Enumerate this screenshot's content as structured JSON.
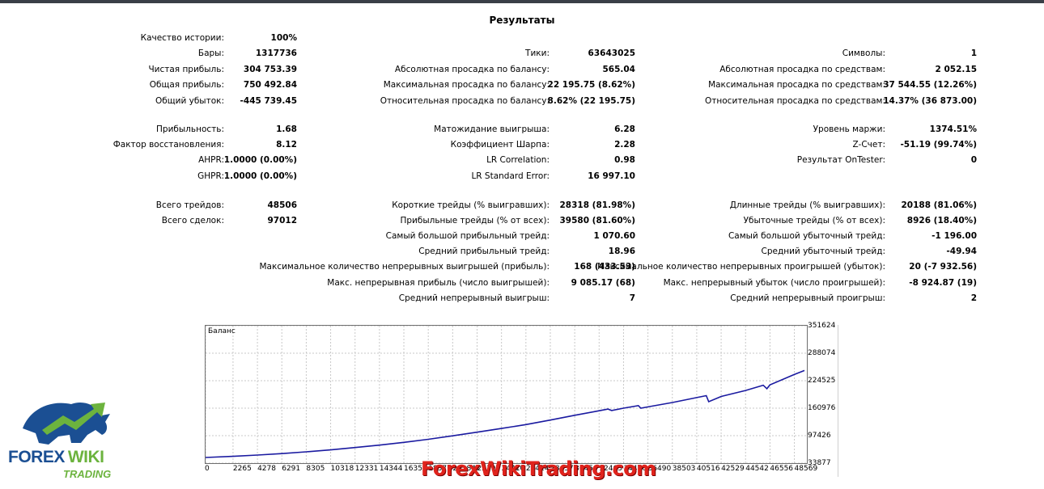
{
  "title": "Результаты",
  "stats": [
    {
      "label": "Качество истории:",
      "value": "100%"
    },
    {
      "label": "Бары:",
      "value": "1317736"
    },
    {
      "label": "Тики:",
      "value": "63643025"
    },
    {
      "label": "Символы:",
      "value": "1"
    },
    {
      "label": "Чистая прибыль:",
      "value": "304 753.39"
    },
    {
      "label": "Абсолютная просадка по балансу:",
      "value": "565.04"
    },
    {
      "label": "Абсолютная просадка по средствам:",
      "value": "2 052.15"
    },
    {
      "label": "Общая прибыль:",
      "value": "750 492.84"
    },
    {
      "label": "Максимальная просадка по балансу:",
      "value": "22 195.75 (8.62%)"
    },
    {
      "label": "Максимальная просадка по средствам:",
      "value": "37 544.55 (12.26%)"
    },
    {
      "label": "Общий убыток:",
      "value": "-445 739.45"
    },
    {
      "label": "Относительная просадка по балансу:",
      "value": "8.62% (22 195.75)"
    },
    {
      "label": "Относительная просадка по средствам:",
      "value": "14.37% (36 873.00)"
    },
    {
      "label": "Прибыльность:",
      "value": "1.68"
    },
    {
      "label": "Матожидание выигрыша:",
      "value": "6.28"
    },
    {
      "label": "Уровень маржи:",
      "value": "1374.51%"
    },
    {
      "label": "Фактор восстановления:",
      "value": "8.12"
    },
    {
      "label": "Коэффициент Шарпа:",
      "value": "2.28"
    },
    {
      "label": "Z-Счет:",
      "value": "-51.19 (99.74%)"
    },
    {
      "label": "AHPR:",
      "value": "1.0000 (0.00%)"
    },
    {
      "label": "LR Correlation:",
      "value": "0.98"
    },
    {
      "label": "Результат OnTester:",
      "value": "0"
    },
    {
      "label": "GHPR:",
      "value": "1.0000 (0.00%)"
    },
    {
      "label": "LR Standard Error:",
      "value": "16 997.10"
    },
    {
      "label": "Всего трейдов:",
      "value": "48506"
    },
    {
      "label": "Короткие трейды (% выигравших):",
      "value": "28318 (81.98%)"
    },
    {
      "label": "Длинные трейды (% выигравших):",
      "value": "20188 (81.06%)"
    },
    {
      "label": "Всего сделок:",
      "value": "97012"
    },
    {
      "label": "Прибыльные трейды (% от всех):",
      "value": "39580 (81.60%)"
    },
    {
      "label": "Убыточные трейды (% от всех):",
      "value": "8926 (18.40%)"
    },
    {
      "label": "Самый большой прибыльный трейд:",
      "value": "1 070.60"
    },
    {
      "label": "Самый большой убыточный трейд:",
      "value": "-1 196.00"
    },
    {
      "label": "Средний прибыльный трейд:",
      "value": "18.96"
    },
    {
      "label": "Средний убыточный трейд:",
      "value": "-49.94"
    },
    {
      "label": "Максимальное количество непрерывных выигрышей (прибыль):",
      "value": "168 (433.53)"
    },
    {
      "label": "Максимальное количество непрерывных проигрышей (убыток):",
      "value": "20 (-7 932.56)"
    },
    {
      "label": "Макс. непрерывная прибыль (число выигрышей):",
      "value": "9 085.17 (68)"
    },
    {
      "label": "Макс. непрерывный убыток (число проигрышей):",
      "value": "-8 924.87 (19)"
    },
    {
      "label": "Средний непрерывный выигрыш:",
      "value": "7"
    },
    {
      "label": "Средний непрерывный проигрыш:",
      "value": "2"
    }
  ],
  "chart_data": {
    "type": "line",
    "title": "Баланс",
    "xlabel": "",
    "ylabel": "",
    "x_ticks": [
      "0",
      "2265",
      "4278",
      "6291",
      "8305",
      "10318",
      "12331",
      "14344",
      "16357",
      "18371",
      "20384",
      "22397",
      "24410",
      "26424",
      "28437",
      "30450",
      "32463",
      "34476",
      "36490",
      "38503",
      "40516",
      "42529",
      "44542",
      "46556",
      "48569"
    ],
    "y_ticks": [
      "351624",
      "288074",
      "224525",
      "160976",
      "97426",
      "33877"
    ],
    "xlim": [
      0,
      49600
    ],
    "ylim": [
      33877,
      351624
    ],
    "grid": true,
    "series": [
      {
        "name": "Баланс",
        "color": "#1a1aa0",
        "x": [
          0,
          2265,
          4278,
          6291,
          8305,
          10318,
          12331,
          14344,
          16357,
          18371,
          20384,
          22397,
          24410,
          26424,
          28437,
          30450,
          32463,
          33200,
          33500,
          34476,
          35700,
          35900,
          36490,
          38503,
          40516,
          41300,
          41500,
          42529,
          44542,
          46000,
          46300,
          46556,
          48569,
          49400
        ],
        "y": [
          47000,
          49500,
          52500,
          56000,
          60000,
          64500,
          70000,
          75500,
          82000,
          89000,
          97000,
          105500,
          114000,
          123000,
          133500,
          144500,
          155000,
          159000,
          155500,
          161000,
          167000,
          161000,
          164000,
          174000,
          185500,
          190000,
          176000,
          188000,
          202000,
          214000,
          206000,
          215000,
          239000,
          248000
        ]
      }
    ]
  },
  "watermark": "ForexWikiTrading.com",
  "logo": {
    "line1": "FOREX",
    "line1b": "WIKI",
    "line2": "TRADING",
    "colors": {
      "blue": "#1b4f93",
      "green": "#6cb33e"
    }
  }
}
